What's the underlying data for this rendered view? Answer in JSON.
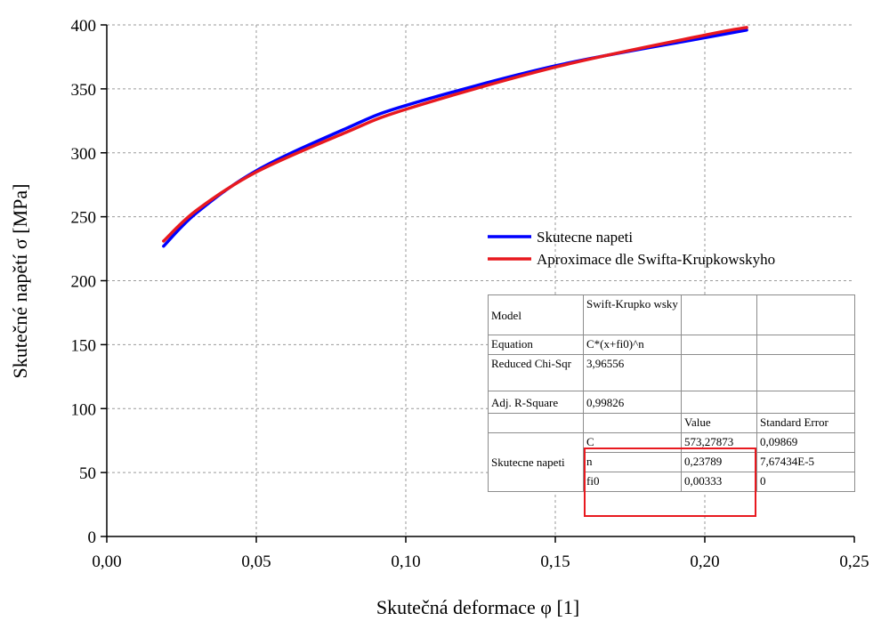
{
  "chart_data": {
    "type": "line",
    "xlabel": "Skutečná deformace φ [1]",
    "ylabel": "Skutečné napětí σ [MPa]",
    "xlim": [
      0,
      0.25
    ],
    "ylim": [
      0,
      400
    ],
    "x_ticks": [
      "0,00",
      "0,05",
      "0,10",
      "0,15",
      "0,20",
      "0,25"
    ],
    "y_ticks": [
      "0",
      "50",
      "100",
      "150",
      "200",
      "250",
      "300",
      "350",
      "400"
    ],
    "grid": true,
    "legend_position": "center-right",
    "series": [
      {
        "name": "Skutecne napeti",
        "color": "#0000ff",
        "x": [
          0.019,
          0.03,
          0.05,
          0.08,
          0.1,
          0.15,
          0.2,
          0.214
        ],
        "y": [
          227,
          253,
          286,
          319,
          337,
          368,
          390,
          396
        ]
      },
      {
        "name": "Aproximace dle Swifta-Krupkowskyho",
        "color": "#e8191f",
        "x": [
          0.019,
          0.03,
          0.05,
          0.08,
          0.1,
          0.15,
          0.2,
          0.214
        ],
        "y": [
          231,
          255,
          285,
          316,
          334,
          367,
          392,
          398
        ]
      }
    ]
  },
  "fit_table": {
    "model_label": "Model",
    "model_value": "Swift-Krupko wsky",
    "equation_label": "Equation",
    "equation_value": "C*(x+fi0)^n",
    "chi_label": "Reduced Chi-Sqr",
    "chi_value": "3,96556",
    "adj_label": "Adj. R-Square",
    "adj_value": "0,99826",
    "value_header": "Value",
    "error_header": "Standard Error",
    "series_label": "Skutecne napeti",
    "params": [
      {
        "name": "C",
        "value": "573,27873",
        "error": "0,09869"
      },
      {
        "name": "n",
        "value": "0,23789",
        "error": "7,67434E-5"
      },
      {
        "name": "fi0",
        "value": "0,00333",
        "error": "0"
      }
    ],
    "highlight_color": "#e8191f"
  }
}
